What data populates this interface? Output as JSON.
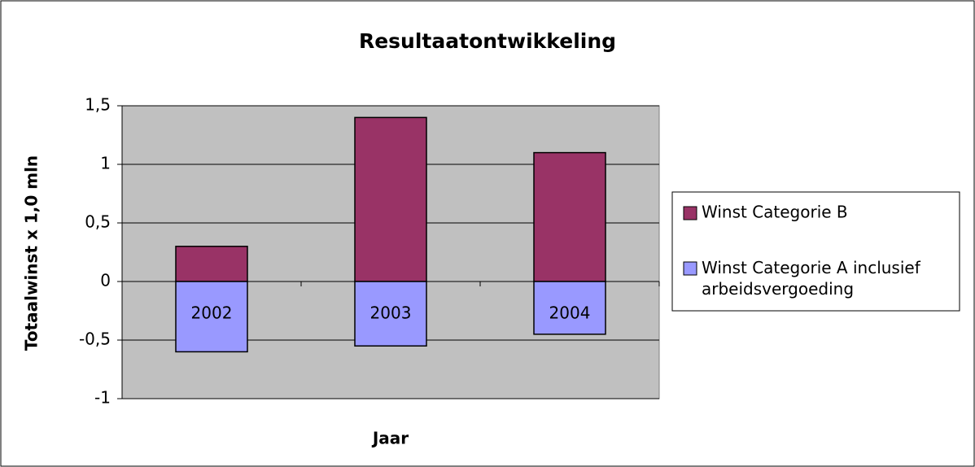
{
  "chart_data": {
    "type": "bar",
    "stacked": true,
    "title": "Resultaatontwikkeling",
    "x_label": "Jaar",
    "y_label": "Totaalwinst x 1,0 mln",
    "categories": [
      "2002",
      "2003",
      "2004"
    ],
    "series": [
      {
        "name": "Winst Categorie B",
        "color": "#993366",
        "values": [
          0.3,
          1.4,
          1.1
        ]
      },
      {
        "name": "Winst Categorie A inclusief arbeidsvergoeding",
        "color": "#9999ff",
        "values": [
          -0.6,
          -0.55,
          -0.45
        ]
      }
    ],
    "ylim": [
      -1,
      1.5
    ],
    "yticks": [
      -1,
      {
        "value": -0.5,
        "label": "-0,5"
      },
      0,
      {
        "value": 0.5,
        "label": "0,5"
      },
      1,
      {
        "value": 1.5,
        "label": "1,5"
      }
    ],
    "grid": true,
    "plot_background": "#c0c0c0",
    "legend": "right"
  }
}
